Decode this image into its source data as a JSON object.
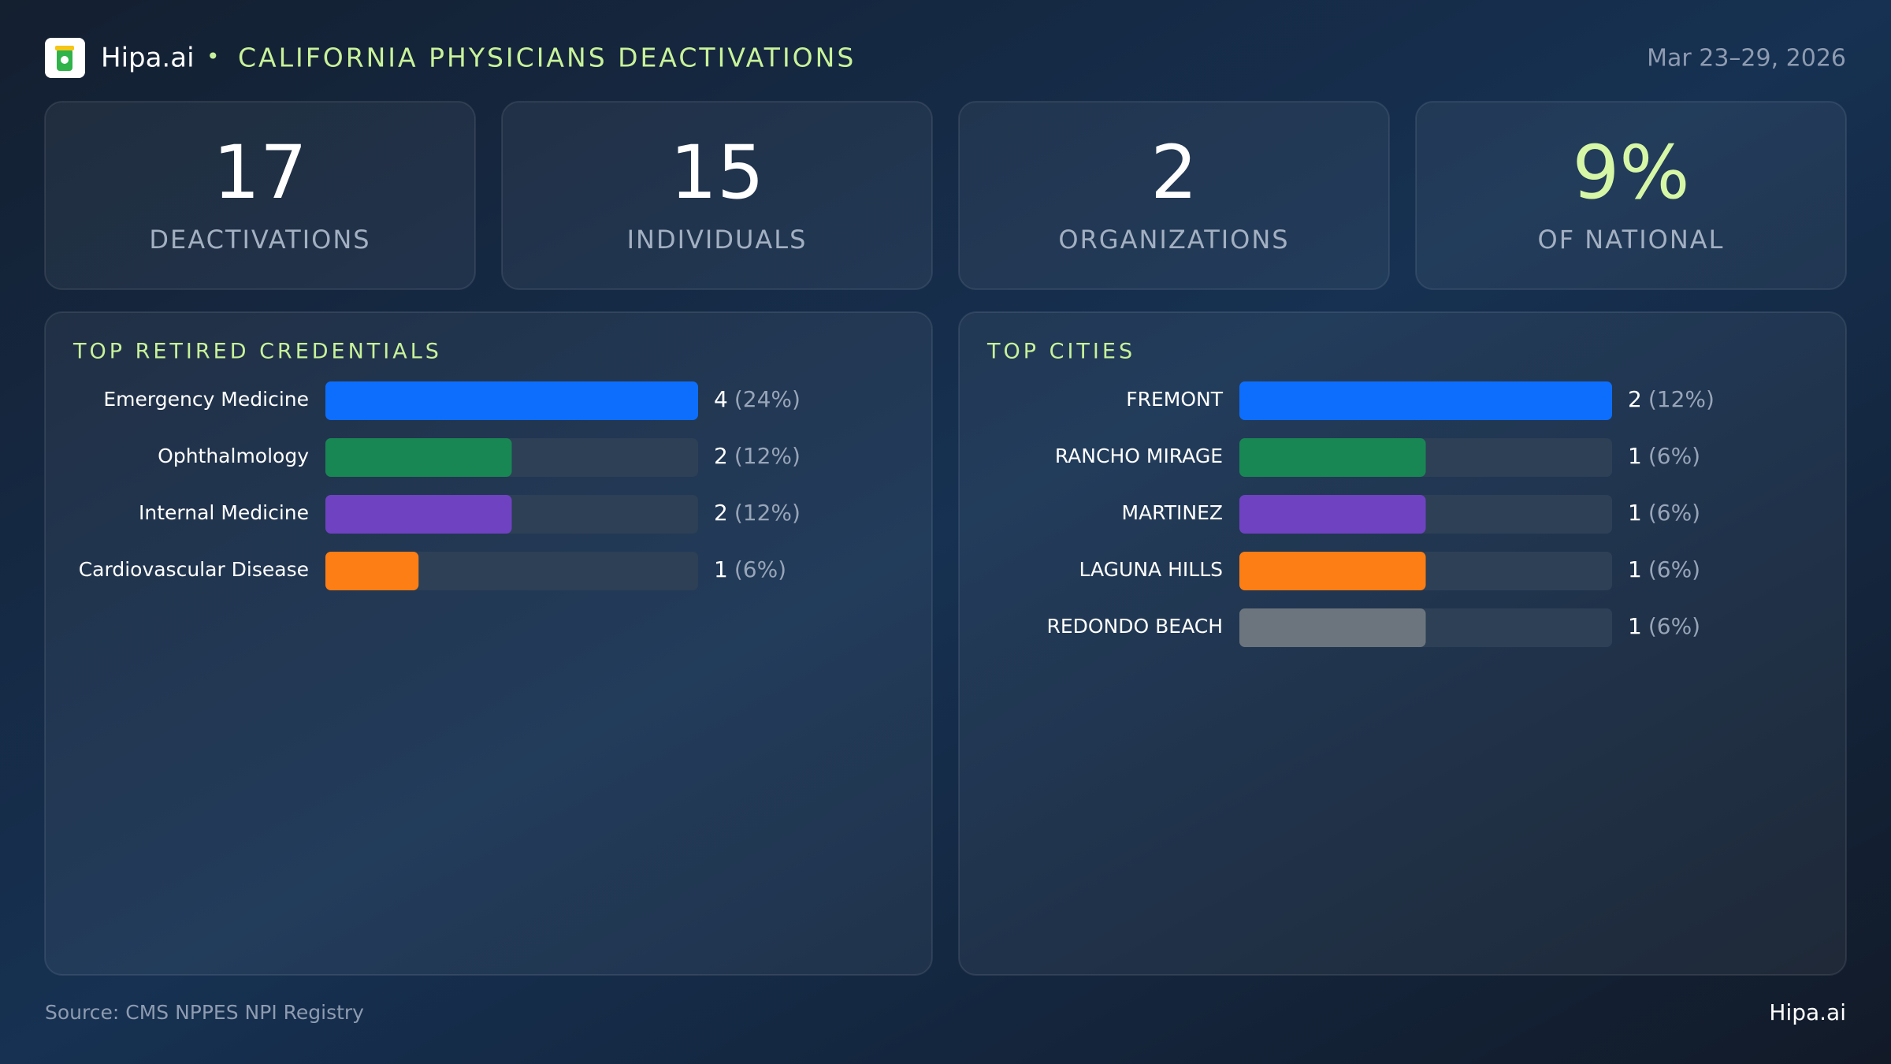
{
  "header": {
    "brand": "Hipa.ai",
    "separator": "•",
    "title": "CALIFORNIA PHYSICIANS DEACTIVATIONS",
    "date": "Mar 23–29, 2026"
  },
  "stats": [
    {
      "value": 17,
      "label": "DEACTIVATIONS"
    },
    {
      "value": 15,
      "label": "INDIVIDUALS"
    },
    {
      "value": 2,
      "label": "ORGANIZATIONS"
    },
    {
      "value": "9%",
      "label": "OF NATIONAL"
    }
  ],
  "chart_data": [
    {
      "type": "bar",
      "title": "TOP RETIRED CREDENTIALS",
      "categories": [
        "Emergency Medicine",
        "Ophthalmology",
        "Internal Medicine",
        "Cardiovascular Disease"
      ],
      "values": [
        4,
        2,
        2,
        1
      ],
      "shares": [
        "(24%)",
        "(12%)",
        "(12%)",
        "(6%)"
      ],
      "colors": [
        "#0d6efd",
        "#198754",
        "#6f42c1",
        "#fd7e14"
      ],
      "xlim": [
        0,
        4
      ]
    },
    {
      "type": "bar",
      "title": "TOP CITIES",
      "categories": [
        "FREMONT",
        "RANCHO MIRAGE",
        "MARTINEZ",
        "LAGUNA HILLS",
        "REDONDO BEACH"
      ],
      "values": [
        2,
        1,
        1,
        1,
        1
      ],
      "shares": [
        "(12%)",
        "(6%)",
        "(6%)",
        "(6%)",
        "(6%)"
      ],
      "colors": [
        "#0d6efd",
        "#198754",
        "#6f42c1",
        "#fd7e14",
        "#6c757d"
      ],
      "xlim": [
        0,
        2
      ]
    }
  ],
  "footer": {
    "source": "Source: CMS NPPES NPI Registry",
    "brand": "Hipa.ai"
  }
}
